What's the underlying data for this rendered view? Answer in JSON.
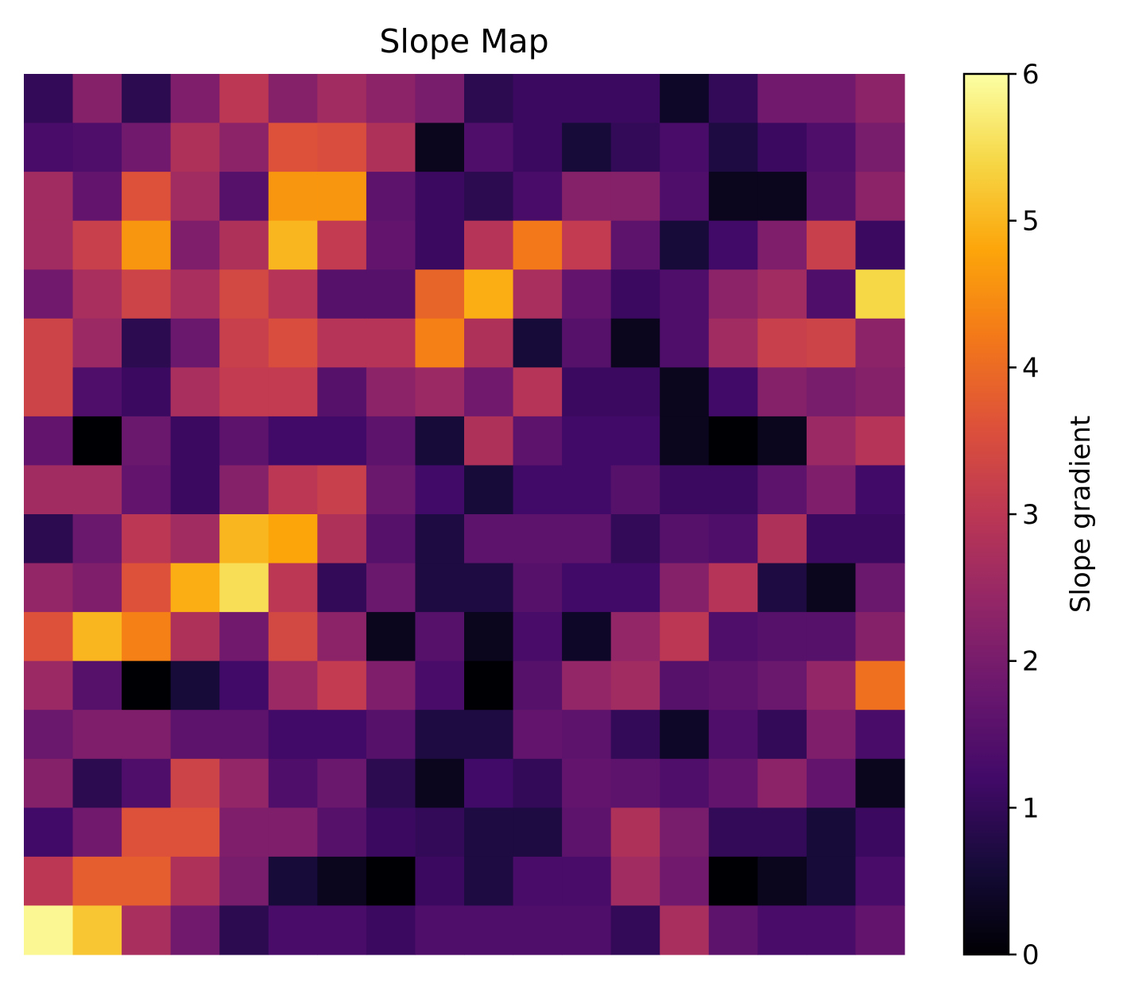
{
  "chart_data": {
    "type": "heatmap",
    "title": "Slope Map",
    "colormap": "inferno",
    "colorbar": {
      "label": "Slope gradient",
      "range": [
        0,
        6
      ],
      "ticks": [
        "0",
        "1",
        "2",
        "3",
        "4",
        "5",
        "6"
      ]
    },
    "rows": 18,
    "cols": 18,
    "values": [
      [
        1.0,
        2.2,
        0.9,
        2.1,
        3.0,
        2.2,
        2.6,
        2.3,
        2.0,
        0.9,
        1.1,
        1.1,
        1.1,
        0.4,
        1.0,
        1.9,
        1.9,
        2.3
      ],
      [
        1.3,
        1.4,
        1.9,
        2.8,
        2.3,
        3.6,
        3.5,
        2.8,
        0.3,
        1.4,
        1.1,
        0.6,
        1.0,
        1.3,
        0.7,
        1.1,
        1.4,
        2.0
      ],
      [
        2.6,
        1.7,
        3.6,
        2.6,
        1.5,
        4.6,
        4.6,
        1.6,
        1.1,
        0.9,
        1.3,
        2.2,
        2.2,
        1.4,
        0.3,
        0.3,
        1.5,
        2.3
      ],
      [
        2.6,
        3.2,
        4.6,
        2.1,
        2.8,
        5.0,
        3.1,
        1.7,
        1.1,
        2.9,
        4.2,
        3.1,
        1.6,
        0.6,
        1.2,
        2.1,
        3.2,
        1.1
      ],
      [
        1.9,
        2.7,
        3.3,
        2.7,
        3.4,
        2.9,
        1.5,
        1.5,
        3.9,
        4.9,
        2.7,
        1.7,
        1.1,
        1.4,
        2.3,
        2.6,
        1.4,
        5.4
      ],
      [
        3.3,
        2.5,
        0.9,
        1.8,
        3.2,
        3.5,
        2.9,
        2.9,
        4.3,
        2.8,
        0.6,
        1.5,
        0.3,
        1.4,
        2.6,
        3.2,
        3.3,
        2.3
      ],
      [
        3.3,
        1.4,
        1.1,
        2.7,
        3.1,
        3.1,
        1.5,
        2.3,
        2.5,
        1.9,
        2.9,
        1.1,
        1.1,
        0.3,
        1.2,
        2.2,
        2.0,
        2.2
      ],
      [
        1.7,
        0.0,
        1.8,
        1.1,
        1.6,
        1.2,
        1.2,
        1.6,
        0.6,
        2.8,
        1.6,
        1.2,
        1.2,
        0.3,
        0.0,
        0.3,
        2.5,
        2.9
      ],
      [
        2.6,
        2.6,
        1.7,
        1.1,
        2.2,
        3.0,
        3.2,
        1.8,
        1.2,
        0.6,
        1.2,
        1.2,
        1.5,
        1.1,
        1.1,
        1.6,
        2.1,
        1.2
      ],
      [
        0.9,
        1.8,
        3.0,
        2.6,
        5.0,
        4.8,
        2.8,
        1.5,
        0.7,
        1.6,
        1.6,
        1.6,
        1.0,
        1.5,
        1.4,
        2.8,
        1.1,
        1.1
      ],
      [
        2.4,
        2.1,
        3.6,
        4.9,
        5.5,
        3.0,
        1.0,
        1.8,
        0.7,
        0.7,
        1.5,
        1.2,
        1.2,
        2.2,
        2.9,
        0.7,
        0.3,
        1.8
      ],
      [
        3.6,
        5.0,
        4.3,
        2.8,
        1.9,
        3.4,
        2.3,
        0.3,
        1.5,
        0.3,
        1.3,
        0.4,
        2.4,
        3.0,
        1.4,
        1.5,
        1.5,
        2.2
      ],
      [
        2.5,
        1.5,
        0.0,
        0.6,
        1.2,
        2.5,
        3.1,
        2.1,
        1.3,
        0.0,
        1.5,
        2.4,
        2.6,
        1.5,
        1.6,
        1.8,
        2.4,
        4.1
      ],
      [
        1.8,
        2.1,
        2.1,
        1.6,
        1.6,
        1.2,
        1.2,
        1.5,
        0.7,
        0.7,
        1.7,
        1.6,
        1.0,
        0.4,
        1.4,
        1.0,
        2.1,
        1.3
      ],
      [
        2.2,
        0.9,
        1.4,
        3.3,
        2.4,
        1.4,
        1.8,
        0.9,
        0.3,
        1.2,
        1.0,
        1.7,
        1.6,
        1.4,
        1.7,
        2.3,
        1.7,
        0.3
      ],
      [
        1.2,
        1.9,
        3.6,
        3.6,
        2.1,
        2.1,
        1.5,
        1.1,
        1.0,
        0.7,
        0.7,
        1.6,
        2.8,
        2.0,
        1.0,
        1.0,
        0.6,
        1.1
      ],
      [
        3.0,
        3.8,
        3.8,
        2.8,
        2.0,
        0.6,
        0.3,
        0.0,
        1.1,
        0.7,
        1.3,
        1.3,
        2.6,
        1.9,
        0.0,
        0.3,
        0.6,
        1.3
      ],
      [
        5.9,
        5.2,
        2.7,
        1.9,
        0.9,
        1.3,
        1.3,
        1.1,
        1.4,
        1.4,
        1.4,
        1.4,
        1.0,
        2.7,
        1.6,
        1.3,
        1.3,
        1.7
      ]
    ]
  }
}
